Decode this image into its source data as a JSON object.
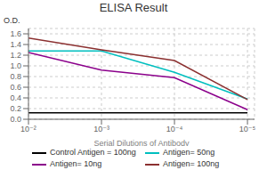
{
  "chart_data": {
    "type": "line",
    "title": "ELISA Result",
    "xlabel": "Serial Dilutions  of Antibody",
    "ylabel": "O.D.",
    "x": [
      0.01,
      0.001,
      0.0001,
      1e-05
    ],
    "series": [
      {
        "name": "Control Antigen = 100ng",
        "color": "#000000",
        "values": [
          0.12,
          0.12,
          0.12,
          0.12
        ]
      },
      {
        "name": "Antigen= 50ng",
        "color": "#00BFBF",
        "values": [
          1.28,
          1.28,
          0.88,
          0.38
        ]
      },
      {
        "name": "Antigen= 10ng",
        "color": "#8B008B",
        "values": [
          1.25,
          0.92,
          0.78,
          0.18
        ]
      },
      {
        "name": "Antigen= 100ng",
        "color": "#8B3030",
        "values": [
          1.52,
          1.3,
          1.1,
          0.37
        ]
      }
    ],
    "xlim": [
      0.01,
      8e-06
    ],
    "xticks": [
      {
        "value": 0.01,
        "label": "10⁻²"
      },
      {
        "value": 0.001,
        "label": "10⁻³"
      },
      {
        "value": 0.0001,
        "label": "10⁻⁴"
      },
      {
        "value": 1e-05,
        "label": "10⁻⁵"
      }
    ],
    "ylim": [
      0,
      1.7
    ],
    "yticks": [
      {
        "value": 0,
        "label": "0.0"
      },
      0.2,
      0.4,
      0.6,
      0.8,
      {
        "value": 1.0,
        "label": "1.0"
      },
      1.2,
      1.4,
      1.6
    ],
    "log": "x",
    "grid": true,
    "legend": "bottom"
  }
}
